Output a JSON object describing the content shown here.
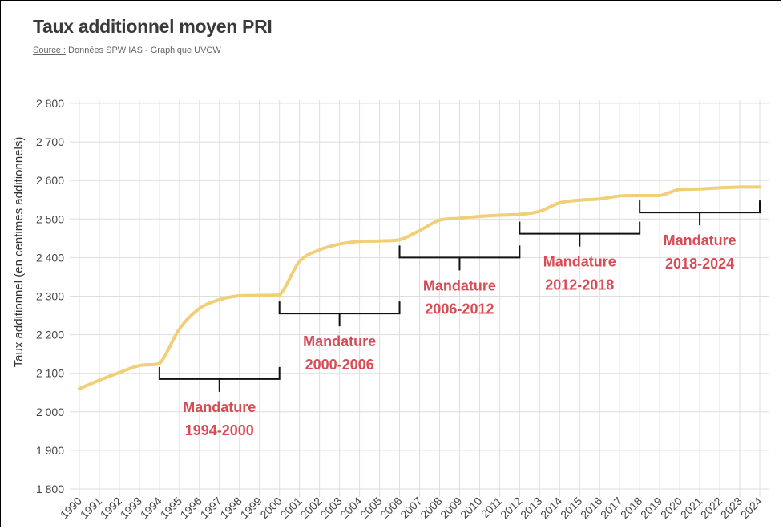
{
  "header": {
    "title": "Taux additionnel moyen PRI",
    "source_label": "Source :",
    "source_text": " Données SPW IAS - Graphique UVCW"
  },
  "colors": {
    "line": "#f1ce78",
    "grid": "#dddddd",
    "annotation_text": "#d84c55",
    "bracket": "#111111"
  },
  "chart_data": {
    "type": "line",
    "title": "Taux additionnel moyen PRI",
    "xlabel": "",
    "ylabel": "Taux additionnel (en centimes additionnels)",
    "ylim": [
      1800,
      2800
    ],
    "yticks": [
      1800,
      1900,
      2000,
      2100,
      2200,
      2300,
      2400,
      2500,
      2600,
      2700,
      2800
    ],
    "ytick_labels": [
      "1 800",
      "1 900",
      "2 000",
      "2 100",
      "2 200",
      "2 300",
      "2 400",
      "2 500",
      "2 600",
      "2 700",
      "2 800"
    ],
    "grid": true,
    "legend": "none",
    "x": [
      "1990",
      "1991",
      "1992",
      "1993",
      "1994",
      "1995",
      "1996",
      "1997",
      "1998",
      "1999",
      "2000",
      "2001",
      "2002",
      "2003",
      "2004",
      "2005",
      "2006",
      "2007",
      "2008",
      "2009",
      "2010",
      "2011",
      "2012",
      "2013",
      "2014",
      "2015",
      "2016",
      "2017",
      "2018",
      "2019",
      "2020",
      "2021",
      "2022",
      "2023",
      "2024"
    ],
    "series": [
      {
        "name": "",
        "values": [
          2060,
          2082,
          2102,
          2120,
          2125,
          2215,
          2268,
          2291,
          2301,
          2302,
          2303,
          2390,
          2420,
          2435,
          2442,
          2443,
          2446,
          2470,
          2497,
          2502,
          2507,
          2510,
          2512,
          2520,
          2542,
          2549,
          2552,
          2560,
          2561,
          2561,
          2577,
          2578,
          2581,
          2583,
          2583
        ]
      }
    ],
    "annotations": [
      {
        "line1": "Mandature",
        "line2": "1994-2000",
        "start": "1994",
        "end": "2000",
        "level": 2085,
        "labels_below": true
      },
      {
        "line1": "Mandature",
        "line2": "2000-2006",
        "start": "2000",
        "end": "2006",
        "level": 2255,
        "labels_below": true
      },
      {
        "line1": "Mandature",
        "line2": "2006-2012",
        "start": "2006",
        "end": "2012",
        "level": 2400,
        "labels_below": true
      },
      {
        "line1": "Mandature",
        "line2": "2012-2018",
        "start": "2012",
        "end": "2018",
        "level": 2462,
        "labels_below": true
      },
      {
        "line1": "Mandature",
        "line2": "2018-2024",
        "start": "2018",
        "end": "2024",
        "level": 2517,
        "labels_below": true
      }
    ]
  }
}
